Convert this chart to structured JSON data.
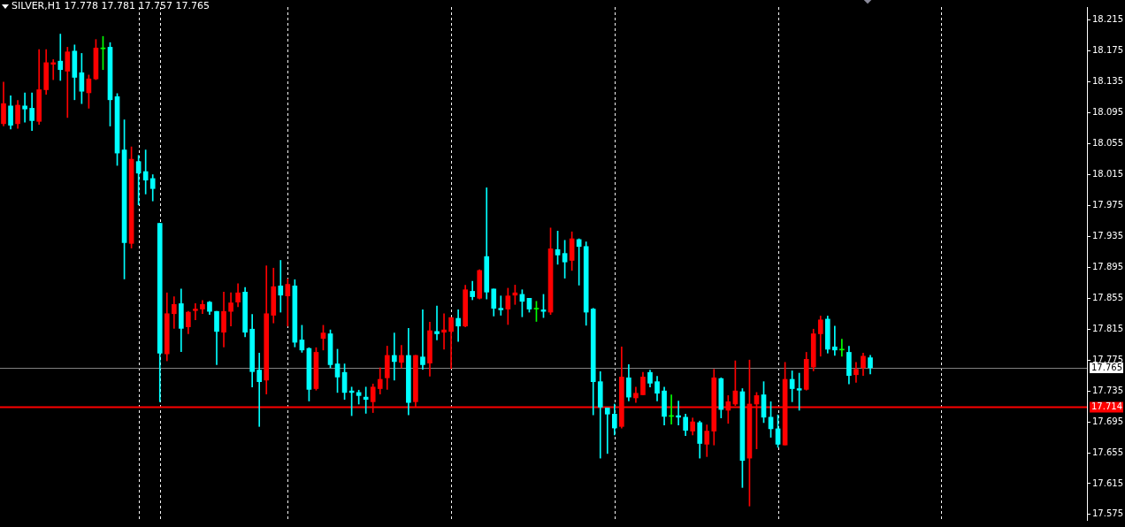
{
  "chart_data": {
    "type": "candlestick",
    "title": "SILVER,H1 17.778 17.781 17.757 17.765",
    "categories": [
      null,
      null,
      null,
      null,
      null,
      null,
      null,
      null,
      null,
      null,
      null,
      null,
      null,
      null,
      null,
      null,
      null,
      null,
      null,
      null,
      null,
      null,
      null,
      null,
      null,
      null,
      null,
      null,
      null,
      null,
      null,
      null,
      null,
      null,
      null,
      null,
      null,
      null,
      null,
      null,
      null,
      null,
      null,
      null,
      null,
      null,
      null,
      null,
      null,
      null,
      null,
      null,
      null,
      null,
      null,
      null,
      null,
      null,
      null,
      null,
      null,
      null,
      null,
      null,
      null,
      null,
      null,
      null,
      null,
      null,
      null,
      null,
      null,
      null,
      null,
      null,
      null,
      null,
      null,
      null,
      null,
      null,
      null,
      null,
      null,
      null,
      null,
      null,
      null,
      null,
      null,
      null,
      null,
      null,
      null,
      null,
      null,
      null,
      null,
      null,
      null,
      null,
      null,
      null,
      null,
      null,
      null,
      null,
      null,
      null,
      null,
      null,
      null,
      null,
      null,
      null,
      null,
      null,
      null,
      null,
      null,
      null,
      null,
      null,
      null,
      null,
      null,
      null,
      null,
      null,
      null,
      null,
      null,
      null,
      null,
      null,
      null,
      null,
      null,
      null,
      null,
      null,
      null,
      null,
      null,
      null,
      null,
      null,
      null,
      null,
      null,
      null,
      null
    ],
    "ohlc": [
      [
        18.081,
        18.135,
        18.078,
        18.107
      ],
      [
        18.104,
        18.117,
        18.074,
        18.079
      ],
      [
        18.081,
        18.111,
        18.075,
        18.105
      ],
      [
        18.104,
        18.121,
        18.083,
        18.1
      ],
      [
        18.101,
        18.121,
        18.072,
        18.085
      ],
      [
        18.084,
        18.177,
        18.08,
        18.125
      ],
      [
        18.125,
        18.177,
        18.119,
        18.16
      ],
      [
        18.158,
        18.164,
        18.138,
        18.16
      ],
      [
        18.162,
        18.197,
        18.137,
        18.151
      ],
      [
        18.149,
        18.18,
        18.089,
        18.174
      ],
      [
        18.175,
        18.183,
        18.112,
        18.141
      ],
      [
        18.147,
        18.172,
        18.107,
        18.123
      ],
      [
        18.121,
        18.144,
        18.101,
        18.139
      ],
      [
        18.139,
        18.19,
        18.138,
        18.179
      ],
      [
        18.178,
        18.194,
        18.151,
        18.178
      ],
      [
        18.18,
        18.186,
        18.078,
        18.112
      ],
      [
        18.116,
        18.12,
        18.027,
        18.043
      ],
      [
        18.047,
        18.086,
        17.88,
        17.927
      ],
      [
        17.926,
        18.051,
        17.92,
        18.035
      ],
      [
        18.032,
        18.04,
        17.976,
        18.017
      ],
      [
        18.019,
        18.047,
        17.99,
        18.008
      ],
      [
        18.01,
        18.015,
        17.981,
        17.997
      ],
      [
        17.952,
        17.952,
        17.721,
        17.784
      ],
      [
        17.783,
        17.862,
        17.774,
        17.835
      ],
      [
        17.835,
        17.857,
        17.816,
        17.847
      ],
      [
        17.848,
        17.867,
        17.786,
        17.816
      ],
      [
        17.818,
        17.838,
        17.809,
        17.837
      ],
      [
        17.839,
        17.848,
        17.827,
        17.841
      ],
      [
        17.841,
        17.852,
        17.835,
        17.847
      ],
      [
        17.85,
        17.851,
        17.834,
        17.838
      ],
      [
        17.838,
        17.838,
        17.769,
        17.812
      ],
      [
        17.811,
        17.863,
        17.792,
        17.838
      ],
      [
        17.838,
        17.862,
        17.819,
        17.849
      ],
      [
        17.85,
        17.874,
        17.844,
        17.862
      ],
      [
        17.863,
        17.869,
        17.805,
        17.811
      ],
      [
        17.815,
        17.834,
        17.74,
        17.76
      ],
      [
        17.762,
        17.784,
        17.689,
        17.747
      ],
      [
        17.749,
        17.897,
        17.731,
        17.835
      ],
      [
        17.833,
        17.894,
        17.823,
        17.87
      ],
      [
        17.871,
        17.904,
        17.837,
        17.859
      ],
      [
        17.858,
        17.88,
        17.819,
        17.873
      ],
      [
        17.871,
        17.879,
        17.792,
        17.798
      ],
      [
        17.801,
        17.82,
        17.785,
        17.788
      ],
      [
        17.79,
        17.791,
        17.722,
        17.737
      ],
      [
        17.738,
        17.791,
        17.736,
        17.785
      ],
      [
        17.803,
        17.82,
        17.788,
        17.81
      ],
      [
        17.809,
        17.814,
        17.765,
        17.769
      ],
      [
        17.77,
        17.789,
        17.733,
        17.753
      ],
      [
        17.759,
        17.77,
        17.724,
        17.733
      ],
      [
        17.735,
        17.74,
        17.703,
        17.733
      ],
      [
        17.733,
        17.736,
        17.718,
        17.729
      ],
      [
        17.727,
        17.74,
        17.706,
        17.724
      ],
      [
        17.721,
        17.744,
        17.707,
        17.74
      ],
      [
        17.738,
        17.765,
        17.731,
        17.75
      ],
      [
        17.752,
        17.793,
        17.737,
        17.781
      ],
      [
        17.781,
        17.81,
        17.749,
        17.773
      ],
      [
        17.772,
        17.794,
        17.765,
        17.781
      ],
      [
        17.781,
        17.816,
        17.704,
        17.72
      ],
      [
        17.721,
        17.781,
        17.714,
        17.781
      ],
      [
        17.779,
        17.84,
        17.763,
        17.769
      ],
      [
        17.771,
        17.824,
        17.754,
        17.813
      ],
      [
        17.812,
        17.845,
        17.801,
        17.809
      ],
      [
        17.811,
        17.835,
        17.789,
        17.814
      ],
      [
        17.812,
        17.83,
        17.764,
        17.83
      ],
      [
        17.829,
        17.84,
        17.799,
        17.819
      ],
      [
        17.819,
        17.872,
        17.818,
        17.866
      ],
      [
        17.864,
        17.877,
        17.853,
        17.857
      ],
      [
        17.855,
        17.892,
        17.854,
        17.891
      ],
      [
        17.909,
        17.998,
        17.854,
        17.863
      ],
      [
        17.867,
        17.867,
        17.832,
        17.842
      ],
      [
        17.842,
        17.858,
        17.833,
        17.84
      ],
      [
        17.841,
        17.868,
        17.821,
        17.858
      ],
      [
        17.859,
        17.872,
        17.847,
        17.862
      ],
      [
        17.86,
        17.866,
        17.831,
        17.851
      ],
      [
        17.855,
        17.855,
        17.837,
        17.841
      ],
      [
        17.841,
        17.851,
        17.825,
        17.841
      ],
      [
        17.84,
        17.86,
        17.83,
        17.838
      ],
      [
        17.837,
        17.946,
        17.834,
        17.919
      ],
      [
        17.918,
        17.942,
        17.899,
        17.911
      ],
      [
        17.913,
        17.93,
        17.881,
        17.902
      ],
      [
        17.904,
        17.941,
        17.891,
        17.932
      ],
      [
        17.931,
        17.932,
        17.872,
        17.922
      ],
      [
        17.922,
        17.928,
        17.82,
        17.837
      ],
      [
        17.841,
        17.842,
        17.704,
        17.747
      ],
      [
        17.747,
        17.76,
        17.648,
        17.714
      ],
      [
        17.713,
        17.713,
        17.654,
        17.705
      ],
      [
        17.705,
        17.718,
        17.678,
        17.687
      ],
      [
        17.689,
        17.792,
        17.687,
        17.753
      ],
      [
        17.752,
        17.769,
        17.722,
        17.727
      ],
      [
        17.726,
        17.74,
        17.72,
        17.732
      ],
      [
        17.73,
        17.759,
        17.73,
        17.753
      ],
      [
        17.759,
        17.762,
        17.74,
        17.745
      ],
      [
        17.747,
        17.754,
        17.722,
        17.732
      ],
      [
        17.735,
        17.74,
        17.691,
        17.702
      ],
      [
        17.702,
        17.73,
        17.692,
        17.702
      ],
      [
        17.703,
        17.722,
        17.691,
        17.701
      ],
      [
        17.701,
        17.705,
        17.677,
        17.684
      ],
      [
        17.683,
        17.7,
        17.678,
        17.695
      ],
      [
        17.694,
        17.696,
        17.648,
        17.667
      ],
      [
        17.666,
        17.691,
        17.65,
        17.683
      ],
      [
        17.683,
        17.763,
        17.665,
        17.752
      ],
      [
        17.751,
        17.752,
        17.7,
        17.711
      ],
      [
        17.71,
        17.729,
        17.693,
        17.721
      ],
      [
        17.718,
        17.774,
        17.716,
        17.735
      ],
      [
        17.734,
        17.738,
        17.61,
        17.645
      ],
      [
        17.648,
        17.775,
        17.586,
        17.718
      ],
      [
        17.718,
        17.733,
        17.66,
        17.729
      ],
      [
        17.73,
        17.747,
        17.694,
        17.701
      ],
      [
        17.701,
        17.721,
        17.675,
        17.686
      ],
      [
        17.686,
        17.704,
        17.662,
        17.666
      ],
      [
        17.665,
        17.772,
        17.665,
        17.75
      ],
      [
        17.75,
        17.761,
        17.721,
        17.738
      ],
      [
        17.738,
        17.758,
        17.71,
        17.736
      ],
      [
        17.737,
        17.785,
        17.736,
        17.776
      ],
      [
        17.766,
        17.815,
        17.761,
        17.809
      ],
      [
        17.809,
        17.832,
        17.78,
        17.827
      ],
      [
        17.828,
        17.832,
        17.784,
        17.789
      ],
      [
        17.792,
        17.819,
        17.781,
        17.788
      ],
      [
        17.788,
        17.802,
        17.78,
        17.788
      ],
      [
        17.785,
        17.793,
        17.744,
        17.755
      ],
      [
        17.756,
        17.772,
        17.746,
        17.763
      ],
      [
        17.765,
        17.784,
        17.755,
        17.78
      ],
      [
        17.778,
        17.781,
        17.757,
        17.765
      ],
      null,
      null,
      null,
      null,
      null,
      null,
      null,
      null,
      null,
      null,
      null,
      null,
      null,
      null,
      null,
      null,
      null,
      null,
      null,
      null,
      null,
      null,
      null,
      null,
      null,
      null,
      null,
      null,
      null,
      null
    ],
    "colors": [
      "#ff0000",
      "#00ffff",
      "#ff0000",
      "#00ffff",
      "#00ffff",
      "#ff0000",
      "#ff0000",
      "#ff0000",
      "#00ffff",
      "#ff0000",
      "#00ffff",
      "#00ffff",
      "#ff0000",
      "#ff0000",
      "#00ff00",
      "#00ffff",
      "#00ffff",
      "#00ffff",
      "#ff0000",
      "#00ffff",
      "#00ffff",
      "#00ffff",
      "#00ffff",
      "#ff0000",
      "#ff0000",
      "#00ffff",
      "#ff0000",
      "#ff0000",
      "#ff0000",
      "#00ffff",
      "#00ffff",
      "#ff0000",
      "#ff0000",
      "#ff0000",
      "#00ffff",
      "#00ffff",
      "#00ffff",
      "#ff0000",
      "#ff0000",
      "#00ffff",
      "#ff0000",
      "#00ffff",
      "#00ffff",
      "#00ffff",
      "#ff0000",
      "#ff0000",
      "#00ffff",
      "#00ffff",
      "#00ffff",
      "#00ffff",
      "#00ffff",
      "#00ffff",
      "#ff0000",
      "#ff0000",
      "#ff0000",
      "#00ffff",
      "#ff0000",
      "#00ffff",
      "#ff0000",
      "#00ffff",
      "#ff0000",
      "#00ffff",
      "#ff0000",
      "#ff0000",
      "#00ffff",
      "#ff0000",
      "#00ffff",
      "#ff0000",
      "#00ffff",
      "#00ffff",
      "#00ffff",
      "#ff0000",
      "#ff0000",
      "#00ffff",
      "#00ffff",
      "#00ff00",
      "#00ffff",
      "#ff0000",
      "#00ffff",
      "#00ffff",
      "#ff0000",
      "#00ffff",
      "#00ffff",
      "#00ffff",
      "#00ffff",
      "#00ffff",
      "#00ffff",
      "#ff0000",
      "#00ffff",
      "#ff0000",
      "#ff0000",
      "#00ffff",
      "#00ffff",
      "#00ffff",
      "#00ff00",
      "#00ffff",
      "#00ffff",
      "#ff0000",
      "#00ffff",
      "#ff0000",
      "#ff0000",
      "#00ffff",
      "#ff0000",
      "#ff0000",
      "#00ffff",
      "#ff0000",
      "#ff0000",
      "#00ffff",
      "#00ffff",
      "#00ffff",
      "#ff0000",
      "#00ffff",
      "#00ffff",
      "#ff0000",
      "#ff0000",
      "#ff0000",
      "#00ffff",
      "#00ffff",
      "#00ff00",
      "#00ffff",
      "#ff0000",
      "#ff0000",
      "#00ffff",
      null,
      null,
      null,
      null,
      null,
      null,
      null,
      null,
      null,
      null,
      null,
      null,
      null,
      null,
      null,
      null,
      null,
      null,
      null,
      null,
      null,
      null,
      null,
      null,
      null,
      null,
      null,
      null,
      null,
      null
    ],
    "ylim": [
      17.568,
      18.232
    ],
    "yticks": [
      18.215,
      18.175,
      18.135,
      18.095,
      18.055,
      18.015,
      17.975,
      17.935,
      17.895,
      17.855,
      17.815,
      17.775,
      17.735,
      17.695,
      17.655,
      17.615,
      17.575
    ],
    "tick_labels": "y",
    "ref_lines": [
      {
        "axis": "y",
        "value": 17.765,
        "label": "17.765",
        "color": "#808080"
      },
      {
        "axis": "y",
        "value": 17.714,
        "label": "17.714",
        "color": "#ff0000"
      }
    ]
  }
}
